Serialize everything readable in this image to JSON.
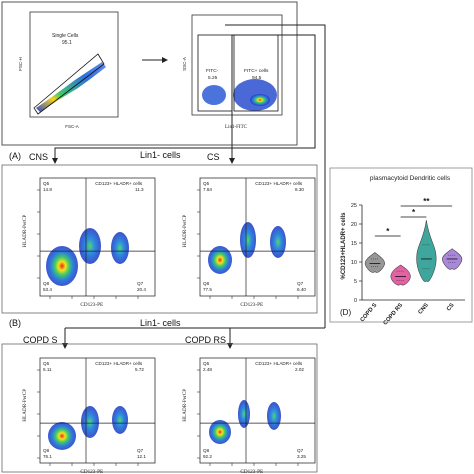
{
  "panel_a": {
    "label": "(A)",
    "plot1": {
      "gate_name": "Single Cells",
      "gate_value": "95.1",
      "xlabel": "FSC-A",
      "ylabel": "FSC-H"
    },
    "plot2": {
      "gate_neg_name": "FITC-",
      "gate_neg_value": "5.25",
      "gate_pos_name": "FITC+ cells",
      "gate_pos_value": "94.5",
      "xlabel": "Lin1-FITC",
      "ylabel": "SSC-A"
    },
    "lin_label": "Lin1- cells",
    "cns_label": "CNS",
    "cs_label": "CS"
  },
  "panel_b": {
    "label": "(B)",
    "lin_label": "Lin1- cells",
    "copds_label": "COPD S",
    "copdrs_label": "COPD RS"
  },
  "quad_plots": [
    {
      "title": "CD123+ HLADR+ cells",
      "q5": "Q5",
      "q5v": "14.8",
      "q6v": "11.3",
      "q8": "Q8",
      "q8v": "53.4",
      "q7": "Q7",
      "q7v": "20.4",
      "xlabel": "CD123-PE",
      "ylabel": "HLADR-PerCP"
    },
    {
      "title": "CD123+ HLADR+ cells",
      "q5": "Q5",
      "q5v": "7.84",
      "q6v": "8.30",
      "q8": "Q8",
      "q8v": "77.5",
      "q7": "Q7",
      "q7v": "6.40",
      "xlabel": "CD123-PE",
      "ylabel": "HLADR-PerCP"
    },
    {
      "title": "CD123+ HLADR+ cells",
      "q5": "Q5",
      "q5v": "6.11",
      "q6v": "5.72",
      "q8": "Q8",
      "q8v": "76.1",
      "q7": "Q7",
      "q7v": "12.1",
      "xlabel": "CD123-PE",
      "ylabel": "HLADR-PerCP"
    },
    {
      "title": "CD123+ HLADR+ cells",
      "q5": "Q5",
      "q5v": "2.48",
      "q6v": "2.02",
      "q8": "Q8",
      "q8v": "92.2",
      "q7": "Q7",
      "q7v": "3.25",
      "xlabel": "CD123-PE",
      "ylabel": "HLADR-PerCP"
    }
  ],
  "chart_data": {
    "type": "violin",
    "title": "plasmacytoid Dendritic cells",
    "ylabel": "%CD123+HLADR+ cells",
    "ylim": [
      0,
      25
    ],
    "yticks": [
      "0",
      "5",
      "10",
      "15",
      "20",
      "25"
    ],
    "categories": [
      "COPD S",
      "COPD RS",
      "CNS",
      "CS"
    ],
    "colors": [
      "#8c8c8c",
      "#e0529a",
      "#2a9d93",
      "#a07cd6"
    ],
    "series": [
      {
        "category": "COPD S",
        "min": 7.5,
        "q1": 8.8,
        "median": 9.6,
        "q3": 10.8,
        "max": 12.5
      },
      {
        "category": "COPD RS",
        "min": 4.2,
        "q1": 5.2,
        "median": 6.2,
        "q3": 7.6,
        "max": 9.2
      },
      {
        "category": "CNS",
        "min": 5.0,
        "q1": 8.2,
        "median": 10.8,
        "q3": 14.5,
        "max": 21.0
      },
      {
        "category": "CS",
        "min": 8.3,
        "q1": 9.8,
        "median": 10.8,
        "q3": 11.8,
        "max": 13.5
      }
    ],
    "significance": [
      {
        "from": "COPD S",
        "to": "COPD RS",
        "label": "*"
      },
      {
        "from": "COPD RS",
        "to": "CNS",
        "label": "*"
      },
      {
        "from": "COPD RS",
        "to": "CS",
        "label": "**"
      }
    ],
    "panel_label": "(D)"
  }
}
